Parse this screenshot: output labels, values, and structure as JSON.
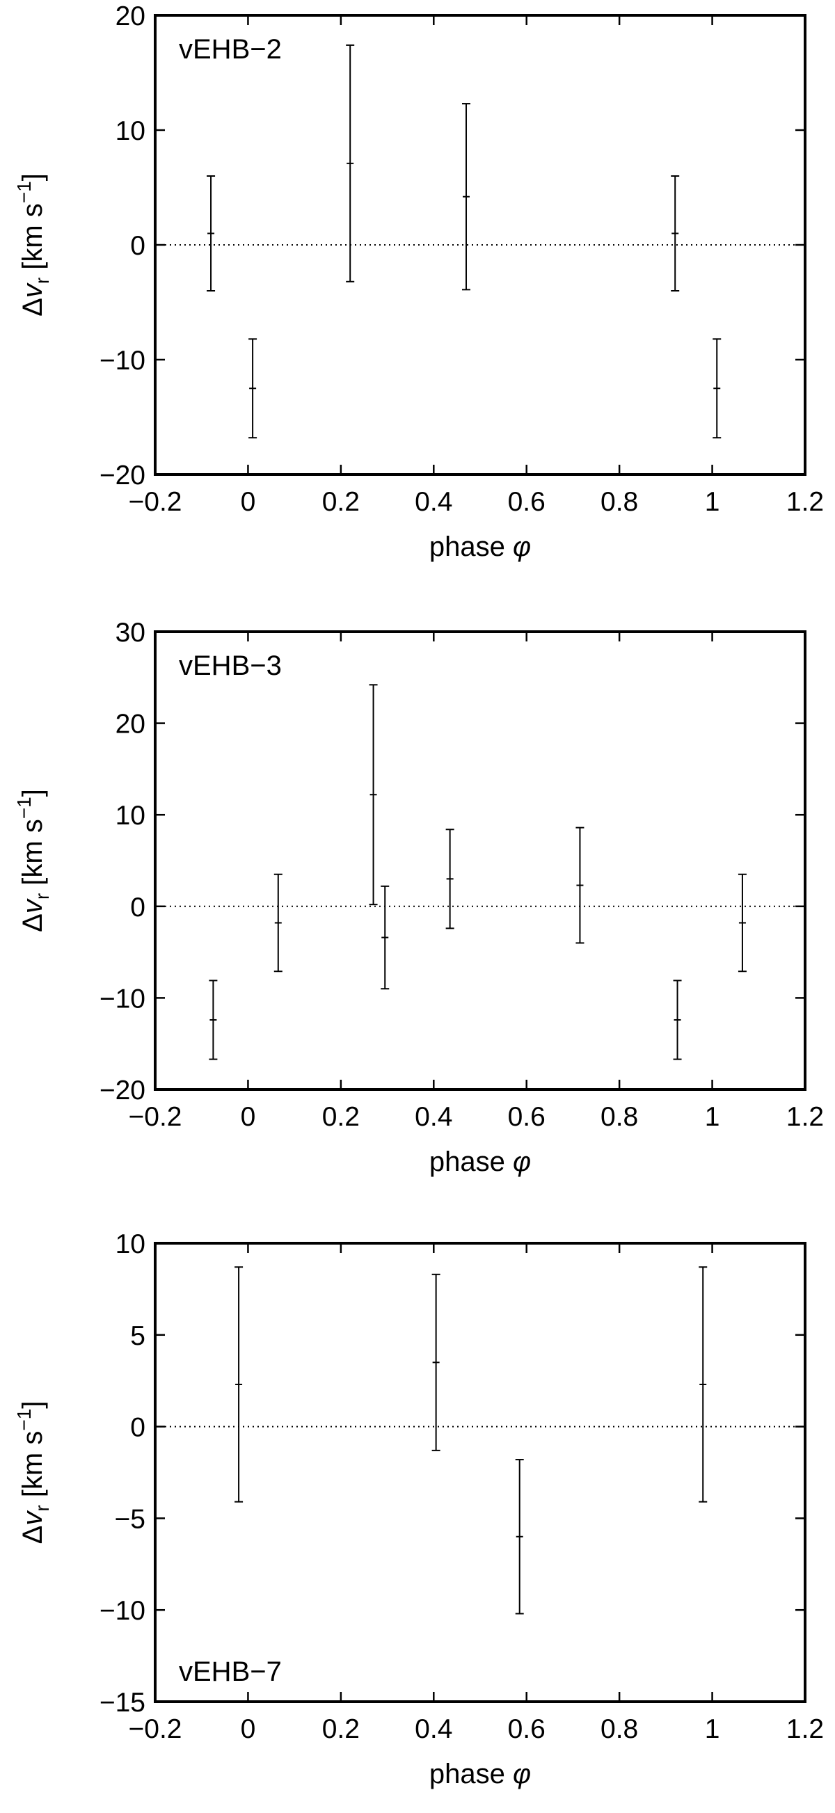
{
  "chart_data": [
    {
      "type": "scatter",
      "label": "vEHB−2",
      "xlabel": "phase",
      "xlabel_symbol": "φ",
      "ylabel_prefix": "Δv",
      "ylabel_subscript": "r",
      "ylabel_unit": "[km s",
      "ylabel_exponent": "−1",
      "ylabel_close": "]",
      "xlim": [
        -0.2,
        1.2
      ],
      "ylim": [
        -20,
        20
      ],
      "xticks": [
        -0.2,
        0,
        0.2,
        0.4,
        0.6,
        0.8,
        1,
        1.2
      ],
      "xtick_labels": [
        "−0.2",
        "0",
        "0.2",
        "0.4",
        "0.6",
        "0.8",
        "1",
        "1.2"
      ],
      "yticks": [
        -20,
        -10,
        0,
        10,
        20
      ],
      "ytick_labels": [
        "−20",
        "−10",
        "0",
        "10",
        "20"
      ],
      "zero_line": true,
      "label_position": "top-left",
      "points": [
        {
          "x": -0.08,
          "y": 1.0,
          "err": 5.0
        },
        {
          "x": 0.01,
          "y": -12.5,
          "err": 4.3
        },
        {
          "x": 0.22,
          "y": 7.1,
          "err": 10.3
        },
        {
          "x": 0.47,
          "y": 4.2,
          "err": 8.1
        },
        {
          "x": 0.92,
          "y": 1.0,
          "err": 5.0
        },
        {
          "x": 1.01,
          "y": -12.5,
          "err": 4.3
        }
      ]
    },
    {
      "type": "scatter",
      "label": "vEHB−3",
      "xlabel": "phase",
      "xlabel_symbol": "φ",
      "ylabel_prefix": "Δv",
      "ylabel_subscript": "r",
      "ylabel_unit": "[km s",
      "ylabel_exponent": "−1",
      "ylabel_close": "]",
      "xlim": [
        -0.2,
        1.2
      ],
      "ylim": [
        -20,
        30
      ],
      "xticks": [
        -0.2,
        0,
        0.2,
        0.4,
        0.6,
        0.8,
        1,
        1.2
      ],
      "xtick_labels": [
        "−0.2",
        "0",
        "0.2",
        "0.4",
        "0.6",
        "0.8",
        "1",
        "1.2"
      ],
      "yticks": [
        -20,
        -10,
        0,
        10,
        20,
        30
      ],
      "ytick_labels": [
        "−20",
        "−10",
        "0",
        "10",
        "20",
        "30"
      ],
      "zero_line": true,
      "label_position": "top-left",
      "points": [
        {
          "x": -0.075,
          "y": -12.4,
          "err": 4.3
        },
        {
          "x": 0.065,
          "y": -1.8,
          "err": 5.3
        },
        {
          "x": 0.27,
          "y": 12.2,
          "err": 12.0
        },
        {
          "x": 0.295,
          "y": -3.4,
          "err": 5.6
        },
        {
          "x": 0.435,
          "y": 3.0,
          "err": 5.4
        },
        {
          "x": 0.715,
          "y": 2.3,
          "err": 6.3
        },
        {
          "x": 0.925,
          "y": -12.4,
          "err": 4.3
        },
        {
          "x": 1.065,
          "y": -1.8,
          "err": 5.3
        }
      ]
    },
    {
      "type": "scatter",
      "label": "vEHB−7",
      "xlabel": "phase",
      "xlabel_symbol": "φ",
      "ylabel_prefix": "Δv",
      "ylabel_subscript": "r",
      "ylabel_unit": "[km s",
      "ylabel_exponent": "−1",
      "ylabel_close": "]",
      "xlim": [
        -0.2,
        1.2
      ],
      "ylim": [
        -15,
        10
      ],
      "xticks": [
        -0.2,
        0,
        0.2,
        0.4,
        0.6,
        0.8,
        1,
        1.2
      ],
      "xtick_labels": [
        "−0.2",
        "0",
        "0.2",
        "0.4",
        "0.6",
        "0.8",
        "1",
        "1.2"
      ],
      "yticks": [
        -15,
        -10,
        -5,
        0,
        5,
        10
      ],
      "ytick_labels": [
        "−15",
        "−10",
        "−5",
        "0",
        "5",
        "10"
      ],
      "zero_line": true,
      "label_position": "bottom-left",
      "points": [
        {
          "x": -0.02,
          "y": 2.3,
          "err": 6.4
        },
        {
          "x": 0.405,
          "y": 3.5,
          "err": 4.8
        },
        {
          "x": 0.585,
          "y": -6.0,
          "err": 4.2
        },
        {
          "x": 0.98,
          "y": 2.3,
          "err": 6.4
        }
      ]
    }
  ]
}
